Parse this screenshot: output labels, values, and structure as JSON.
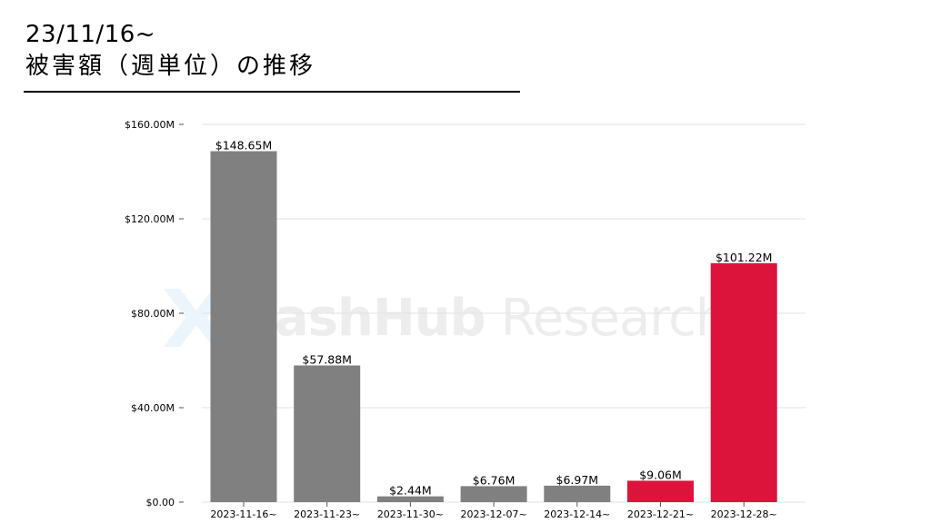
{
  "header": {
    "date_line": "23/11/16~",
    "title_line": "被害額（週単位）の推移"
  },
  "watermark": {
    "brand_bold": "HashHub",
    "brand_light": " Research",
    "logo_icon": "hashhub-logo-icon"
  },
  "chart_data": {
    "type": "bar",
    "categories": [
      "2023-11-16~",
      "2023-11-23~",
      "2023-11-30~",
      "2023-12-07~",
      "2023-12-14~",
      "2023-12-21~",
      "2023-12-28~"
    ],
    "values": [
      148.65,
      57.88,
      2.44,
      6.76,
      6.97,
      9.06,
      101.22
    ],
    "value_labels": [
      "$148.65M",
      "$57.88M",
      "$2.44M",
      "$6.76M",
      "$6.97M",
      "$9.06M",
      "$101.22M"
    ],
    "bar_colors": [
      "#808080",
      "#808080",
      "#808080",
      "#808080",
      "#808080",
      "#dc143c",
      "#dc143c"
    ],
    "ylim": [
      0,
      160
    ],
    "yticks": [
      0,
      40,
      80,
      120,
      160
    ],
    "ytick_labels": [
      "$0.00",
      "$40.00M",
      "$80.00M",
      "$120.00M",
      "$160.00M"
    ],
    "grid": true,
    "title": "",
    "xlabel": "",
    "ylabel": ""
  }
}
